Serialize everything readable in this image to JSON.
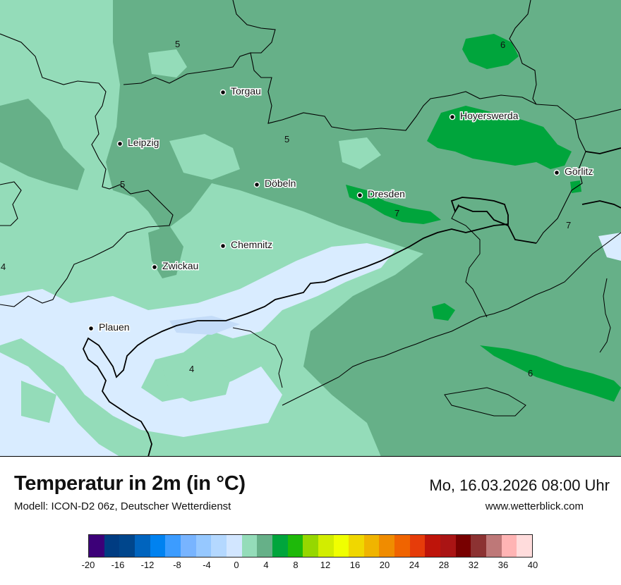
{
  "header": {
    "title": "Temperatur in 2m (in °C)",
    "subtitle": "Modell: ICON-D2 06z, Deutscher Wetterdienst",
    "datetime": "Mo, 16.03.2026 08:00 Uhr",
    "website": "www.wetterblick.com"
  },
  "map": {
    "cities": [
      {
        "name": "Torgau"
      },
      {
        "name": "Leipzig"
      },
      {
        "name": "Döbeln"
      },
      {
        "name": "Dresden"
      },
      {
        "name": "Hoyerswerda"
      },
      {
        "name": "Görlitz"
      },
      {
        "name": "Chemnitz"
      },
      {
        "name": "Zwickau"
      },
      {
        "name": "Plauen"
      }
    ],
    "isolabels": [
      "5",
      "5",
      "5",
      "6",
      "7",
      "7",
      "6",
      "4",
      "4"
    ],
    "colors": {
      "temp_6_8": "#66b088",
      "temp_4_6": "#94dcb9",
      "temp_2_4": "#d6e8ff",
      "temp_0_2": "#d9ecff",
      "temp_8_10": "#00a53c"
    }
  },
  "legend": {
    "ticks": [
      "-20",
      "-16",
      "-12",
      "-8",
      "-4",
      "0",
      "4",
      "8",
      "12",
      "16",
      "20",
      "24",
      "28",
      "32",
      "36",
      "40"
    ],
    "colors": [
      "#3c0078",
      "#003c82",
      "#00468c",
      "#0064be",
      "#0082f0",
      "#3c9cff",
      "#78b4ff",
      "#96c8ff",
      "#b4d8ff",
      "#d2e6ff",
      "#94dcb9",
      "#66b088",
      "#00a53c",
      "#1eb90a",
      "#96d700",
      "#d2ed00",
      "#f0ff00",
      "#f0d700",
      "#f0b400",
      "#f08c00",
      "#f06400",
      "#e63c0a",
      "#be140a",
      "#aa1414",
      "#780000",
      "#8c3232",
      "#be7878",
      "#ffb4b4",
      "#ffdcdc"
    ]
  }
}
